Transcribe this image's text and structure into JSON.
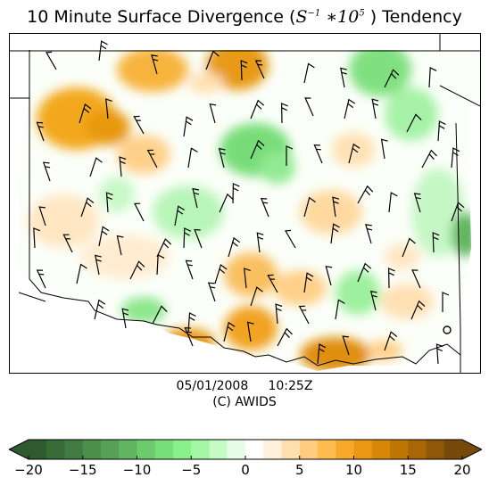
{
  "title": {
    "prefix": "10 Minute Surface Divergence (",
    "s": "S",
    "s_exp": "−1",
    "mid": " ∗10",
    "ten_exp": "5",
    "suffix": " ) Tendency"
  },
  "footer": {
    "timestamp": "05/01/2008     10:25Z",
    "credit": "(C) AWIDS"
  },
  "colorbar": {
    "min": -20,
    "max": 20,
    "ticks": [
      "−20",
      "−15",
      "−10",
      "−5",
      "0",
      "5",
      "10",
      "15",
      "20"
    ],
    "tick_values": [
      -20,
      -15,
      -10,
      -5,
      0,
      5,
      10,
      15,
      20
    ],
    "colors": [
      "#2f5a2f",
      "#386b38",
      "#427c42",
      "#4c8e4c",
      "#56a156",
      "#61b561",
      "#6ccb6c",
      "#77df77",
      "#8af08a",
      "#a4f7a4",
      "#c5fbc5",
      "#e8fde8",
      "#ffffff",
      "#fff1dc",
      "#ffdfaf",
      "#ffcc80",
      "#ffbb50",
      "#f9a92a",
      "#eb9812",
      "#d78708",
      "#c07605",
      "#a96606",
      "#8f5707",
      "#764a0a"
    ]
  },
  "map": {
    "type": "surface divergence tendency field with station wind barbs",
    "region": "Oklahoma"
  }
}
